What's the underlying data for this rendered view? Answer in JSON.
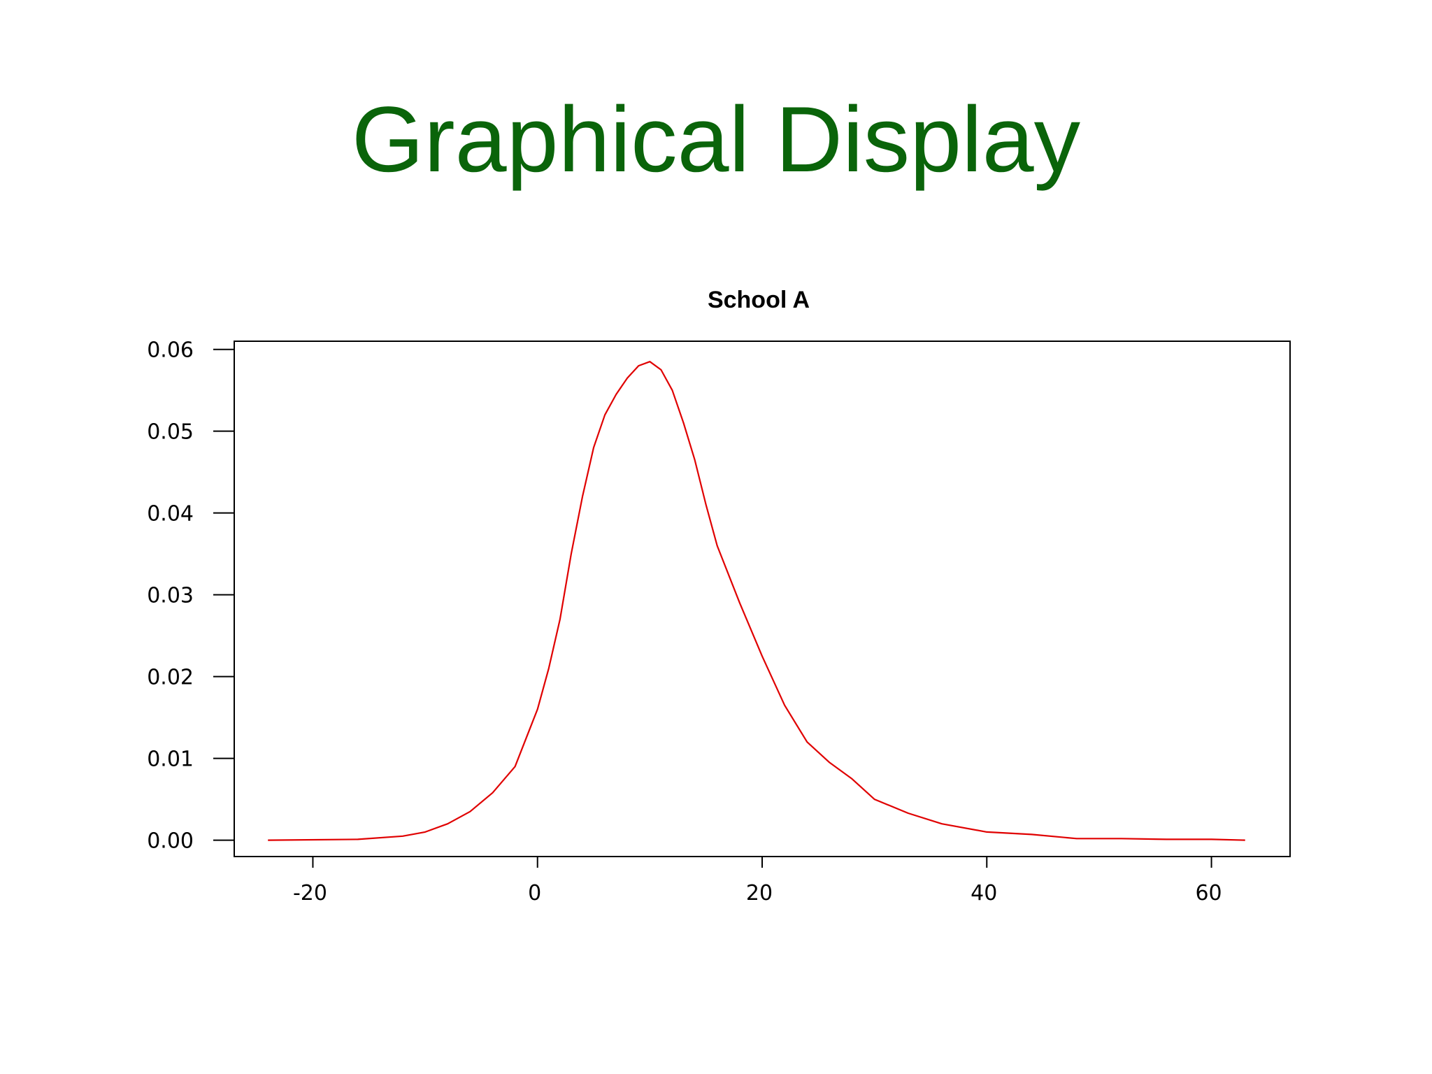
{
  "slide": {
    "title": "Graphical Display",
    "title_color": "#0a640a"
  },
  "chart_data": {
    "type": "line",
    "title": "School A",
    "xlabel": "",
    "ylabel": "",
    "xlim": [
      -27,
      67
    ],
    "ylim": [
      -0.002,
      0.061
    ],
    "x_ticks": [
      -20,
      0,
      20,
      40,
      60
    ],
    "x_tick_labels": [
      "-20",
      "0",
      "20",
      "40",
      "60"
    ],
    "y_ticks": [
      0.0,
      0.01,
      0.02,
      0.03,
      0.04,
      0.05,
      0.06
    ],
    "y_tick_labels": [
      "0.00",
      "0.01",
      "0.02",
      "0.03",
      "0.04",
      "0.05",
      "0.06"
    ],
    "grid": false,
    "legend": "none",
    "series": [
      {
        "color": "#e00000",
        "x": [
          -24,
          -16,
          -12,
          -10,
          -8,
          -6,
          -4,
          -2,
          0,
          1,
          2,
          3,
          4,
          5,
          6,
          7,
          8,
          9,
          10,
          11,
          12,
          13,
          14,
          15,
          16,
          18,
          20,
          22,
          24,
          26,
          28,
          30,
          33,
          36,
          40,
          44,
          48,
          52,
          56,
          60,
          63
        ],
        "y": [
          0.0,
          0.0001,
          0.0005,
          0.001,
          0.002,
          0.0035,
          0.0058,
          0.009,
          0.016,
          0.021,
          0.027,
          0.035,
          0.042,
          0.048,
          0.052,
          0.0545,
          0.0565,
          0.058,
          0.0585,
          0.0575,
          0.055,
          0.051,
          0.0465,
          0.041,
          0.036,
          0.029,
          0.0225,
          0.0165,
          0.012,
          0.0095,
          0.0075,
          0.005,
          0.0033,
          0.002,
          0.001,
          0.0007,
          0.0002,
          0.0002,
          0.0001,
          0.0001,
          0.0
        ]
      }
    ]
  }
}
